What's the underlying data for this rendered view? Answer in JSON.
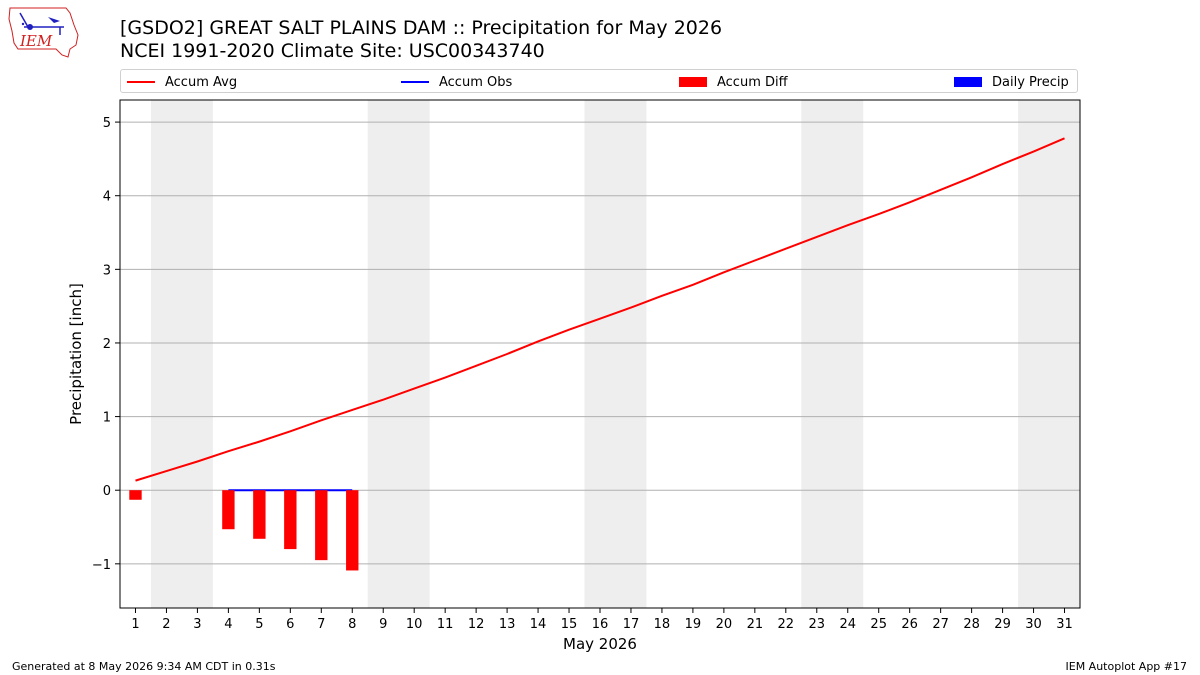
{
  "title_line1": "[GSDO2] GREAT SALT PLAINS DAM :: Precipitation for May 2026",
  "title_line2": "NCEI 1991-2020 Climate Site: USC00343740",
  "logo_text": "IEM",
  "footer_left": "Generated at 8 May 2026 9:34 AM CDT in 0.31s",
  "footer_right": "IEM Autoplot App #17",
  "colors": {
    "accum_avg": "#ff0000",
    "accum_obs": "#0000ff",
    "accum_diff": "#ff0000",
    "daily_precip": "#0000ff",
    "weekend_band": "#eeeeee",
    "grid": "#b0b0b0"
  },
  "chart_data": {
    "type": "line",
    "xlabel": "May 2026",
    "ylabel": "Precipitation [inch]",
    "xlim": [
      0.5,
      31.5
    ],
    "ylim": [
      -1.6,
      5.3
    ],
    "x_ticks": [
      1,
      2,
      3,
      4,
      5,
      6,
      7,
      8,
      9,
      10,
      11,
      12,
      13,
      14,
      15,
      16,
      17,
      18,
      19,
      20,
      21,
      22,
      23,
      24,
      25,
      26,
      27,
      28,
      29,
      30,
      31
    ],
    "y_ticks": [
      -1,
      0,
      1,
      2,
      3,
      4,
      5
    ],
    "grid": "horizontal",
    "legend_position": "top",
    "legend": [
      "Accum Avg",
      "Accum Obs",
      "Accum Diff",
      "Daily Precip"
    ],
    "weekend_shading": [
      [
        2,
        3
      ],
      [
        9,
        10
      ],
      [
        16,
        17
      ],
      [
        23,
        24
      ],
      [
        30,
        31
      ]
    ],
    "series": [
      {
        "name": "Accum Avg",
        "type": "line",
        "x": [
          1,
          2,
          3,
          4,
          5,
          6,
          7,
          8,
          9,
          10,
          11,
          12,
          13,
          14,
          15,
          16,
          17,
          18,
          19,
          20,
          21,
          22,
          23,
          24,
          25,
          26,
          27,
          28,
          29,
          30,
          31
        ],
        "values": [
          0.13,
          0.26,
          0.39,
          0.53,
          0.66,
          0.8,
          0.95,
          1.09,
          1.23,
          1.38,
          1.53,
          1.69,
          1.85,
          2.02,
          2.18,
          2.33,
          2.48,
          2.64,
          2.79,
          2.96,
          3.12,
          3.28,
          3.44,
          3.6,
          3.75,
          3.91,
          4.08,
          4.25,
          4.43,
          4.6,
          4.78
        ]
      },
      {
        "name": "Accum Obs",
        "type": "line",
        "x": [
          4,
          5,
          6,
          7,
          8
        ],
        "values": [
          0.0,
          0.0,
          0.0,
          0.0,
          0.0
        ]
      },
      {
        "name": "Accum Diff",
        "type": "bar",
        "x": [
          1,
          4,
          5,
          6,
          7,
          8
        ],
        "values": [
          -0.13,
          -0.53,
          -0.66,
          -0.8,
          -0.95,
          -1.09
        ]
      },
      {
        "name": "Daily Precip",
        "type": "bar",
        "x": [],
        "values": []
      }
    ]
  }
}
